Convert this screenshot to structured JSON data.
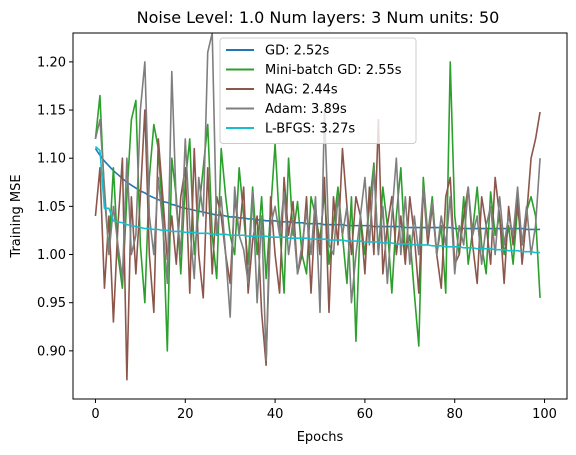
{
  "chart_data": {
    "type": "line",
    "title": "Noise Level: 1.0   Num layers: 3   Num units: 50",
    "xlabel": "Epochs",
    "ylabel": "Training MSE",
    "xlim": [
      -5,
      105
    ],
    "ylim": [
      0.85,
      1.23
    ],
    "xticks": [
      0,
      20,
      40,
      60,
      80,
      100
    ],
    "yticks": [
      0.9,
      0.95,
      1.0,
      1.05,
      1.1,
      1.15,
      1.2
    ],
    "grid": false,
    "legend_position": "top-center",
    "x": [
      0,
      1,
      2,
      3,
      4,
      5,
      6,
      7,
      8,
      9,
      10,
      11,
      12,
      13,
      14,
      15,
      16,
      17,
      18,
      19,
      20,
      21,
      22,
      23,
      24,
      25,
      26,
      27,
      28,
      29,
      30,
      31,
      32,
      33,
      34,
      35,
      36,
      37,
      38,
      39,
      40,
      41,
      42,
      43,
      44,
      45,
      46,
      47,
      48,
      49,
      50,
      51,
      52,
      53,
      54,
      55,
      56,
      57,
      58,
      59,
      60,
      61,
      62,
      63,
      64,
      65,
      66,
      67,
      68,
      69,
      70,
      71,
      72,
      73,
      74,
      75,
      76,
      77,
      78,
      79,
      80,
      81,
      82,
      83,
      84,
      85,
      86,
      87,
      88,
      89,
      90,
      91,
      92,
      93,
      94,
      95,
      96,
      97,
      98,
      99
    ],
    "series": [
      {
        "name": "GD: 2.52s",
        "color": "#1f77b4",
        "values": [
          1.11,
          1.103,
          1.097,
          1.092,
          1.087,
          1.083,
          1.079,
          1.075,
          1.072,
          1.069,
          1.066,
          1.064,
          1.061,
          1.059,
          1.057,
          1.055,
          1.054,
          1.052,
          1.051,
          1.049,
          1.048,
          1.047,
          1.046,
          1.045,
          1.044,
          1.043,
          1.042,
          1.041,
          1.041,
          1.04,
          1.039,
          1.039,
          1.038,
          1.038,
          1.037,
          1.037,
          1.036,
          1.036,
          1.035,
          1.035,
          1.035,
          1.034,
          1.034,
          1.034,
          1.033,
          1.033,
          1.033,
          1.032,
          1.032,
          1.032,
          1.032,
          1.031,
          1.031,
          1.031,
          1.031,
          1.031,
          1.03,
          1.03,
          1.03,
          1.03,
          1.03,
          1.03,
          1.029,
          1.029,
          1.029,
          1.029,
          1.029,
          1.029,
          1.029,
          1.028,
          1.028,
          1.028,
          1.028,
          1.028,
          1.028,
          1.028,
          1.028,
          1.028,
          1.028,
          1.028,
          1.027,
          1.027,
          1.027,
          1.027,
          1.027,
          1.027,
          1.027,
          1.027,
          1.027,
          1.027,
          1.027,
          1.027,
          1.027,
          1.027,
          1.027,
          1.027,
          1.026,
          1.026,
          1.026,
          1.026
        ]
      },
      {
        "name": "Mini-batch GD: 2.55s",
        "color": "#2ca02c",
        "values": [
          1.12,
          1.165,
          1.06,
          1.005,
          1.09,
          1.0,
          0.965,
          1.06,
          1.14,
          1.16,
          1.01,
          0.95,
          1.08,
          1.135,
          1.11,
          1.04,
          0.9,
          1.1,
          1.06,
          0.98,
          1.075,
          1.12,
          1.0,
          1.045,
          1.09,
          1.135,
          1.02,
          0.975,
          1.11,
          1.06,
          1.02,
          1.0,
          1.09,
          1.04,
          0.99,
          1.07,
          1.0,
          1.06,
          0.975,
          1.045,
          1.115,
          1.03,
          0.96,
          1.1,
          1.02,
          1.055,
          1.0,
          0.98,
          1.06,
          1.04,
          1.015,
          1.065,
          0.99,
          1.03,
          1.07,
          1.02,
          0.97,
          1.06,
          0.91,
          1.04,
          1.0,
          1.05,
          1.095,
          1.0,
          1.07,
          1.03,
          0.96,
          1.04,
          1.09,
          1.0,
          1.02,
          0.96,
          0.905,
          1.08,
          1.02,
          1.06,
          1.0,
          1.03,
          0.96,
          1.2,
          1.04,
          1.0,
          1.06,
          0.99,
          1.025,
          1.07,
          1.01,
          0.98,
          1.065,
          1.02,
          1.04,
          1.0,
          1.03,
          0.99,
          1.05,
          1.01,
          1.045,
          1.06,
          1.04,
          0.955
        ]
      },
      {
        "name": "NAG: 2.44s",
        "color": "#8c564b",
        "values": [
          1.04,
          1.09,
          0.965,
          1.04,
          0.93,
          1.03,
          1.1,
          0.87,
          1.06,
          0.98,
          1.06,
          1.15,
          1.0,
          0.94,
          1.12,
          1.06,
          0.995,
          1.04,
          0.99,
          1.06,
          1.09,
          0.96,
          1.11,
          1.0,
          0.955,
          1.09,
          0.98,
          1.06,
          1.04,
          1.0,
          0.97,
          1.06,
          1.02,
          1.07,
          0.96,
          1.015,
          1.04,
          0.94,
          0.885,
          1.06,
          1.0,
          0.96,
          1.08,
          1.02,
          1.055,
          0.98,
          1.0,
          1.06,
          0.96,
          1.05,
          1.0,
          1.08,
          0.94,
          1.06,
          1.01,
          1.11,
          1.05,
          1.0,
          1.06,
          1.04,
          0.98,
          1.07,
          1.0,
          1.14,
          0.98,
          1.03,
          1.06,
          1.0,
          1.04,
          0.99,
          1.06,
          1.02,
          0.96,
          1.07,
          1.01,
          1.05,
          1.0,
          0.965,
          1.06,
          1.08,
          0.99,
          1.0,
          1.04,
          1.07,
          1.01,
          0.97,
          1.06,
          1.03,
          0.99,
          1.08,
          1.04,
          0.97,
          1.05,
          1.01,
          1.06,
          0.99,
          1.04,
          1.1,
          1.12,
          1.148
        ]
      },
      {
        "name": "Adam: 3.89s",
        "color": "#7f7f7f",
        "values": [
          1.12,
          1.14,
          1.07,
          1.0,
          1.05,
          1.01,
          0.975,
          1.1,
          1.0,
          1.02,
          1.15,
          1.2,
          1.04,
          1.0,
          1.08,
          1.03,
          0.97,
          1.19,
          1.05,
          1.0,
          1.12,
          1.03,
          0.975,
          1.08,
          1.04,
          1.21,
          1.23,
          1.02,
          1.06,
          1.0,
          0.935,
          1.07,
          1.02,
          1.005,
          0.97,
          1.065,
          0.95,
          1.04,
          0.89,
          1.03,
          1.05,
          1.02,
          1.065,
          1.0,
          1.035,
          0.98,
          1.01,
          1.045,
          1.0,
          1.06,
          0.94,
          1.15,
          1.01,
          1.0,
          1.06,
          1.02,
          1.05,
          0.95,
          1.0,
          1.04,
          1.08,
          1.01,
          1.09,
          1.0,
          1.05,
          0.97,
          1.04,
          1.1,
          1.0,
          1.06,
          0.99,
          1.04,
          1.0,
          1.07,
          1.02,
          1.055,
          1.0,
          1.04,
          1.01,
          1.06,
          0.98,
          1.03,
          1.01,
          1.07,
          1.02,
          1.04,
          0.99,
          1.03,
          1.05,
          1.0,
          1.06,
          1.01,
          1.04,
          1.02,
          1.07,
          1.01,
          1.05,
          1.0,
          1.03,
          1.1
        ]
      },
      {
        "name": "L-BFGS: 3.27s",
        "color": "#17becf",
        "values": [
          1.112,
          1.108,
          1.048,
          1.048,
          1.035,
          1.034,
          1.033,
          1.031,
          1.03,
          1.029,
          1.028,
          1.027,
          1.027,
          1.026,
          1.026,
          1.025,
          1.025,
          1.024,
          1.024,
          1.024,
          1.023,
          1.023,
          1.023,
          1.022,
          1.022,
          1.022,
          1.021,
          1.021,
          1.021,
          1.021,
          1.02,
          1.02,
          1.02,
          1.02,
          1.019,
          1.019,
          1.019,
          1.019,
          1.019,
          1.018,
          1.018,
          1.018,
          1.018,
          1.017,
          1.017,
          1.017,
          1.017,
          1.017,
          1.016,
          1.016,
          1.016,
          1.016,
          1.015,
          1.015,
          1.015,
          1.015,
          1.014,
          1.014,
          1.014,
          1.014,
          1.013,
          1.013,
          1.013,
          1.013,
          1.012,
          1.012,
          1.012,
          1.011,
          1.011,
          1.011,
          1.011,
          1.01,
          1.01,
          1.01,
          1.01,
          1.009,
          1.009,
          1.009,
          1.008,
          1.008,
          1.008,
          1.008,
          1.007,
          1.007,
          1.007,
          1.006,
          1.006,
          1.006,
          1.006,
          1.005,
          1.005,
          1.005,
          1.004,
          1.004,
          1.004,
          1.003,
          1.003,
          1.003,
          1.002,
          1.002
        ]
      }
    ]
  }
}
